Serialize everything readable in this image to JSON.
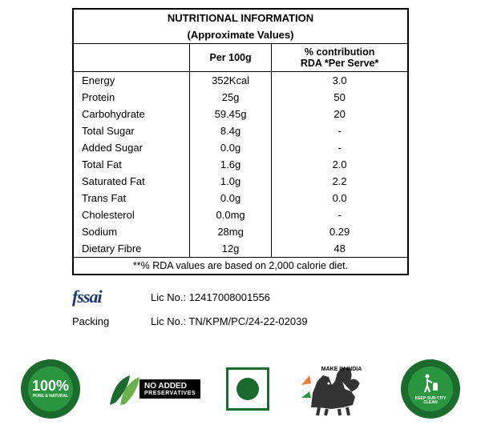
{
  "table": {
    "title_line1": "NUTRITIONAL INFORMATION",
    "title_line2": "(Approximate Values)",
    "col1_header": "",
    "col2_header": "Per 100g",
    "col3_header_line1": "% contribution",
    "col3_header_line2": "RDA *Per Serve*",
    "rows": [
      {
        "label": "Energy",
        "per100g": "352Kcal",
        "rda": "3.0"
      },
      {
        "label": "Protein",
        "per100g": "25g",
        "rda": "50"
      },
      {
        "label": "Carbohydrate",
        "per100g": "59.45g",
        "rda": "20"
      },
      {
        "label": "Total Sugar",
        "per100g": "8.4g",
        "rda": "-"
      },
      {
        "label": "Added Sugar",
        "per100g": "0.0g",
        "rda": "-"
      },
      {
        "label": "Total Fat",
        "per100g": "1.6g",
        "rda": "2.0"
      },
      {
        "label": "Saturated Fat",
        "per100g": "1.0g",
        "rda": "2.2"
      },
      {
        "label": "Trans Fat",
        "per100g": "0.0g",
        "rda": "0.0"
      },
      {
        "label": "Cholesterol",
        "per100g": "0.0mg",
        "rda": "-"
      },
      {
        "label": "Sodium",
        "per100g": "28mg",
        "rda": "0.29"
      },
      {
        "label": "Dietary Fibre",
        "per100g": "12g",
        "rda": "48"
      }
    ],
    "footnote": "**% RDA values are based on 2,000 calorie diet."
  },
  "licenses": {
    "fssai_label": "fssai",
    "fssai_lic_label": "Lic No.: ",
    "fssai_lic_value": "12417008001556",
    "packing_label": "Packing",
    "packing_lic_label": "Lic No.: ",
    "packing_lic_value": "TN/KPM/PC/24-22-02039"
  },
  "badges": {
    "pure_natural_pct": "100%",
    "pure_natural_text": "PURE & NATURAL",
    "no_preserv_line1": "NO ADDED",
    "no_preserv_line2": "PRESERVATIVES",
    "make_in_india": "MAKE IN INDIA",
    "keep_clean": "KEEP OUR CITY CLEAN"
  },
  "colors": {
    "green_dark": "#1b6b2c",
    "green_mid": "#2a9640",
    "green_light": "#6ab04c",
    "black": "#000000",
    "white": "#ffffff",
    "navy": "#1a3a6e"
  }
}
